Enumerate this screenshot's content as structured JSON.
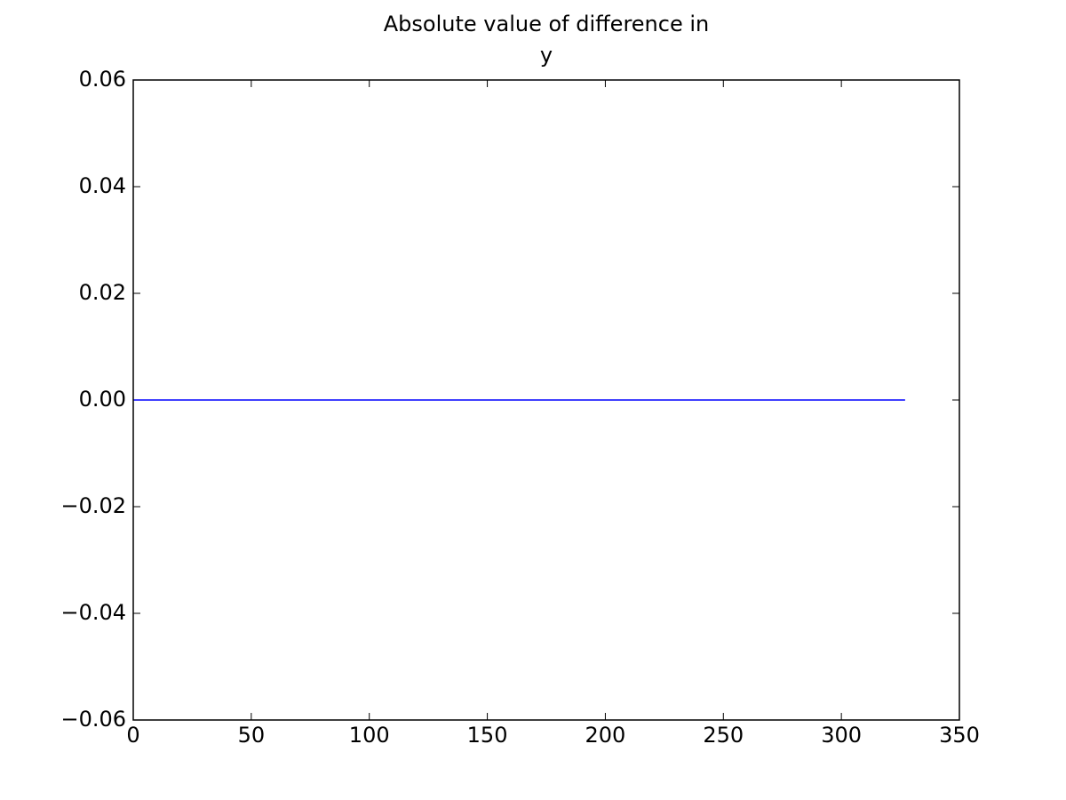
{
  "chart_data": {
    "type": "line",
    "title": [
      "Absolute value of difference in",
      "y"
    ],
    "x": [
      0,
      327
    ],
    "values": [
      0,
      0
    ],
    "color": "#0000ff",
    "xlim": [
      0,
      350
    ],
    "xticks": [
      0,
      50,
      100,
      150,
      200,
      250,
      300,
      350
    ],
    "ylim": [
      -0.06,
      0.06
    ],
    "yticks": [
      {
        "value": -0.06,
        "label": "−0.06"
      },
      {
        "value": -0.04,
        "label": "−0.04"
      },
      {
        "value": -0.02,
        "label": "−0.02"
      },
      {
        "value": 0,
        "label": "0.00"
      },
      0.02,
      0.04,
      0.06
    ],
    "grid": false
  }
}
